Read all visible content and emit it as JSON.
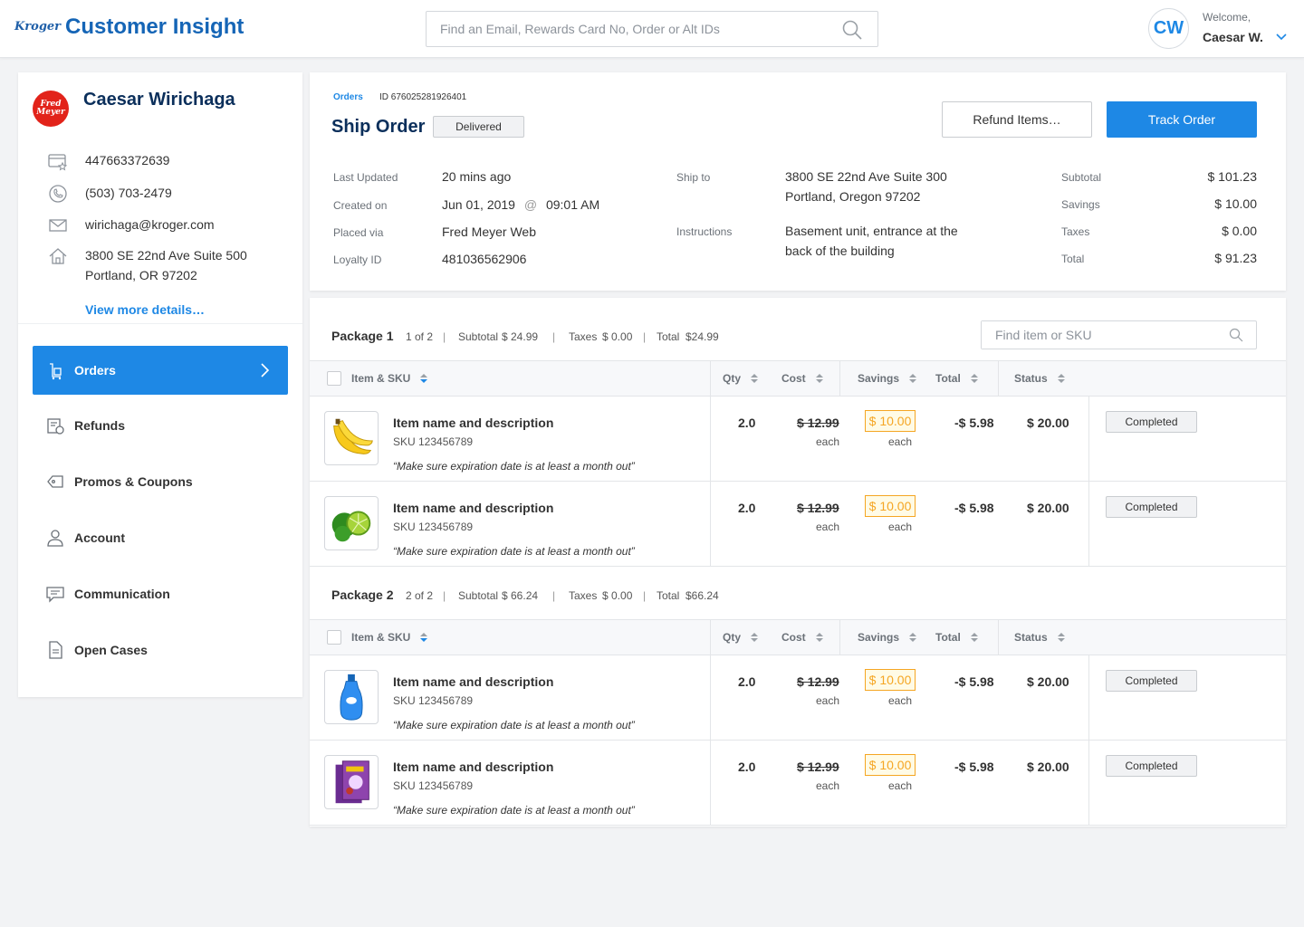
{
  "header": {
    "app_title": "Customer Insight",
    "logo_text": "Kroger",
    "search_placeholder": "Find an Email, Rewards Card No, Order or Alt IDs",
    "avatar_initials": "CW",
    "welcome_label": "Welcome,",
    "user_name": "Caesar W."
  },
  "customer": {
    "store_logo_top": "Fred",
    "store_logo_bottom": "Meyer",
    "name": "Caesar Wirichaga",
    "card_number": "447663372639",
    "phone": "(503) 703-2479",
    "email": "wirichaga@kroger.com",
    "address_line1": "3800 SE 22nd Ave Suite 500",
    "address_line2": "Portland, OR 97202",
    "view_more": "View more details…"
  },
  "nav": {
    "items": [
      {
        "label": "Orders",
        "icon": "orders-icon",
        "active": true
      },
      {
        "label": "Refunds",
        "icon": "refunds-icon"
      },
      {
        "label": "Promos & Coupons",
        "icon": "coupon-icon"
      },
      {
        "label": "Account",
        "icon": "account-icon"
      },
      {
        "label": "Communication",
        "icon": "chat-icon"
      },
      {
        "label": "Open Cases",
        "icon": "document-icon"
      }
    ]
  },
  "order": {
    "breadcrumb": "Orders",
    "id_text": "ID 676025281926401",
    "title": "Ship Order",
    "status": "Delivered",
    "refund_button": "Refund Items…",
    "track_button": "Track Order",
    "last_updated_label": "Last Updated",
    "last_updated": "20 mins ago",
    "created_label": "Created on",
    "created_date": "Jun 01, 2019",
    "created_at": "@",
    "created_time": "09:01 AM",
    "placed_label": "Placed via",
    "placed_via": "Fred Meyer Web",
    "loyalty_label": "Loyalty ID",
    "loyalty_id": "481036562906",
    "ship_label": "Ship to",
    "ship_line1": "3800 SE 22nd Ave Suite 300",
    "ship_line2": "Portland, Oregon 97202",
    "instr_label": "Instructions",
    "instr_line1": "Basement unit, entrance at the",
    "instr_line2": "back of the building",
    "subtotal_label": "Subtotal",
    "subtotal": "$ 101.23",
    "savings_label": "Savings",
    "savings": "$ 10.00",
    "taxes_label": "Taxes",
    "taxes": "$ 0.00",
    "total_label": "Total",
    "total": "$ 91.23"
  },
  "table": {
    "sku_placeholder": "Find item or SKU",
    "col_item": "Item & SKU",
    "col_qty": "Qty",
    "col_cost": "Cost",
    "col_savings": "Savings",
    "col_total": "Total",
    "col_status": "Status",
    "each": "each"
  },
  "packages": [
    {
      "name": "Package 1",
      "count": "1 of 2",
      "subtotal_label": "Subtotal",
      "subtotal": "$ 24.99",
      "taxes_label": "Taxes",
      "taxes": "$ 0.00",
      "total_label": "Total",
      "total": "$24.99",
      "items": [
        {
          "name": "Item name and description",
          "sku": "SKU 123456789",
          "note": "“Make sure expiration date is at least a month out”",
          "qty": "2.0",
          "cost": "$ 12.99",
          "savings": "$ 10.00",
          "total": "-$ 5.98",
          "amount": "$ 20.00",
          "status": "Completed",
          "image": "banana"
        },
        {
          "name": "Item name and description",
          "sku": "SKU 123456789",
          "note": "“Make sure expiration date is at least a month out”",
          "qty": "2.0",
          "cost": "$ 12.99",
          "savings": "$ 10.00",
          "total": "-$ 5.98",
          "amount": "$ 20.00",
          "status": "Completed",
          "image": "lime"
        }
      ]
    },
    {
      "name": "Package 2",
      "count": "2 of 2",
      "subtotal_label": "Subtotal",
      "subtotal": "$ 66.24",
      "taxes_label": "Taxes",
      "taxes": "$ 0.00",
      "total_label": "Total",
      "total": "$66.24",
      "items": [
        {
          "name": "Item name and description",
          "sku": "SKU 123456789",
          "note": "“Make sure expiration date is at least a month out”",
          "qty": "2.0",
          "cost": "$ 12.99",
          "savings": "$ 10.00",
          "total": "-$ 5.98",
          "amount": "$ 20.00",
          "status": "Completed",
          "image": "dish-soap"
        },
        {
          "name": "Item name and description",
          "sku": "SKU 123456789",
          "note": "“Make sure expiration date is at least a month out”",
          "qty": "2.0",
          "cost": "$ 12.99",
          "savings": "$ 10.00",
          "total": "-$ 5.98",
          "amount": "$ 20.00",
          "status": "Completed",
          "image": "juice-pack"
        }
      ]
    }
  ],
  "colors": {
    "accent": "#1e88e5",
    "brand_title": "#1565b6",
    "savings": "#f5a623",
    "store_logo": "#e2231a"
  }
}
